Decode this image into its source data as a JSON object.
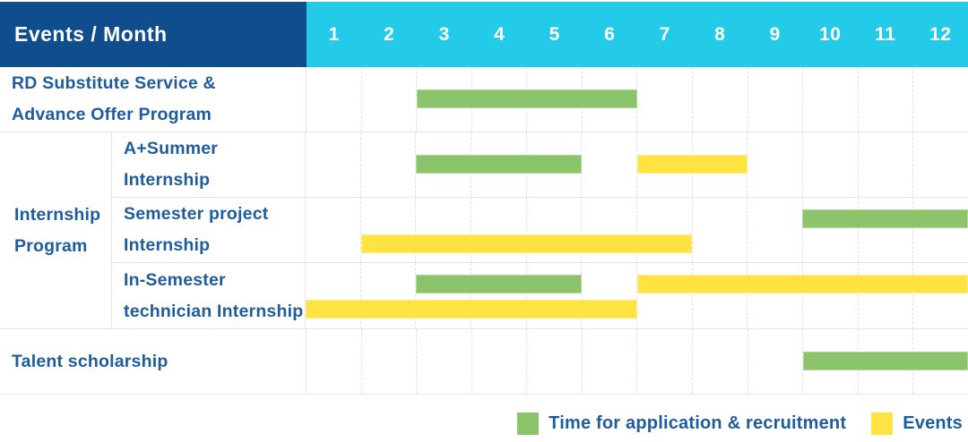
{
  "header": {
    "title": "Events / Month"
  },
  "colors": {
    "header_bg": "#0F4D8C",
    "month_strip_bg": "#23CBE8",
    "label_text": "#1E5C9E",
    "application_green": "#8BC46A",
    "events_yellow": "#FFE342",
    "grid_border": "#E4E4E4"
  },
  "chart_data": {
    "type": "bar",
    "subtype": "gantt-schedule",
    "title": "Events / Month",
    "x_categories": [
      "1",
      "2",
      "3",
      "4",
      "5",
      "6",
      "7",
      "8",
      "9",
      "10",
      "11",
      "12"
    ],
    "x_range": [
      1,
      12
    ],
    "grid": "on",
    "legend_position": "bottom-right",
    "rows": [
      {
        "label_lines": [
          "RD Substitute Service &",
          "Advance Offer Program"
        ],
        "lanes": 1,
        "bars": [
          {
            "category": "application",
            "start_month": 3,
            "end_month": 6,
            "lane": 0
          }
        ]
      },
      {
        "group_label_lines": [
          "Internship",
          "Program"
        ],
        "subrows": [
          {
            "label_lines": [
              "A+Summer",
              "Internship"
            ],
            "lanes": 1,
            "bars": [
              {
                "category": "application",
                "start_month": 3,
                "end_month": 5,
                "lane": 0
              },
              {
                "category": "events",
                "start_month": 7,
                "end_month": 8,
                "lane": 0
              }
            ]
          },
          {
            "label_lines": [
              "Semester project",
              "Internship"
            ],
            "lanes": 2,
            "bars": [
              {
                "category": "application",
                "start_month": 10,
                "end_month": 12,
                "lane": 0
              },
              {
                "category": "events",
                "start_month": 2,
                "end_month": 7,
                "lane": 1
              }
            ]
          },
          {
            "label_lines": [
              "In-Semester",
              "technician Internship"
            ],
            "lanes": 2,
            "bars": [
              {
                "category": "application",
                "start_month": 3,
                "end_month": 5,
                "lane": 0
              },
              {
                "category": "events",
                "start_month": 7,
                "end_month": 12,
                "lane": 0
              },
              {
                "category": "events",
                "start_month": 1,
                "end_month": 6,
                "lane": 1
              }
            ]
          }
        ]
      },
      {
        "label_lines": [
          "Talent scholarship"
        ],
        "lanes": 1,
        "bars": [
          {
            "category": "application",
            "start_month": 10,
            "end_month": 12,
            "lane": 0
          }
        ]
      }
    ]
  },
  "legend": {
    "items": [
      {
        "key": "application",
        "color_hex": "#8BC46A",
        "label": "Time for application & recruitment"
      },
      {
        "key": "events",
        "color_hex": "#FFE342",
        "label": "Events"
      }
    ]
  }
}
